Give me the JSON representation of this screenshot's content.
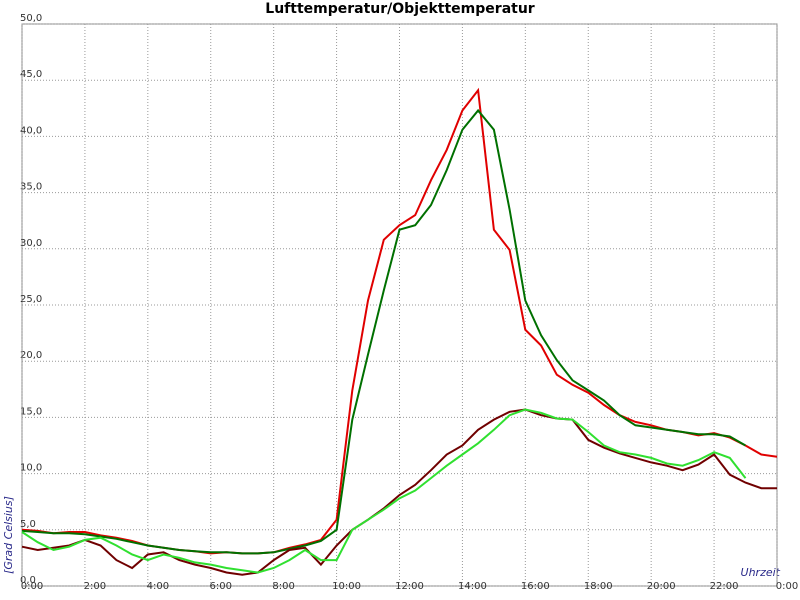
{
  "chart_data": {
    "type": "line",
    "title": "Lufttemperatur/Objekttemperatur",
    "y_label": "[Grad Celsius]",
    "x_label": "Uhrzeit",
    "grid": true,
    "x": [
      0,
      0.5,
      1,
      1.5,
      2,
      2.5,
      3,
      3.5,
      4,
      4.5,
      5,
      5.5,
      6,
      6.5,
      7,
      7.5,
      8,
      8.5,
      9,
      9.5,
      10,
      10.5,
      11,
      11.5,
      12,
      12.5,
      13,
      13.5,
      14,
      14.5,
      15,
      15.5,
      16,
      16.5,
      17,
      17.5,
      18,
      18.5,
      19,
      19.5,
      20,
      20.5,
      21,
      21.5,
      22,
      22.5,
      23,
      23.5,
      24
    ],
    "xlim": [
      0,
      24
    ],
    "xticks": [
      {
        "value": 0,
        "label": "0:00"
      },
      {
        "value": 2,
        "label": "2:00"
      },
      {
        "value": 4,
        "label": "4:00"
      },
      {
        "value": 6,
        "label": "6:00"
      },
      {
        "value": 8,
        "label": "8:00"
      },
      {
        "value": 10,
        "label": "10:00"
      },
      {
        "value": 12,
        "label": "12:00"
      },
      {
        "value": 14,
        "label": "14:00"
      },
      {
        "value": 16,
        "label": "16:00"
      },
      {
        "value": 18,
        "label": "18:00"
      },
      {
        "value": 20,
        "label": "20:00"
      },
      {
        "value": 22,
        "label": "22:00"
      },
      {
        "value": 24,
        "label": "0:00"
      }
    ],
    "ylim": [
      0,
      50
    ],
    "yticks": [
      {
        "value": 0,
        "label": "0,0"
      },
      {
        "value": 5,
        "label": "5,0"
      },
      {
        "value": 10,
        "label": "10,0"
      },
      {
        "value": 15,
        "label": "15,0"
      },
      {
        "value": 20,
        "label": "20,0"
      },
      {
        "value": 25,
        "label": "25,0"
      },
      {
        "value": 30,
        "label": "30,0"
      },
      {
        "value": 35,
        "label": "35,0"
      },
      {
        "value": 40,
        "label": "40,0"
      },
      {
        "value": 45,
        "label": "45,0"
      },
      {
        "value": 50,
        "label": "50,0"
      }
    ],
    "series": [
      {
        "color": "#e00000",
        "values": [
          5.0,
          4.9,
          4.7,
          4.8,
          4.8,
          4.5,
          4.3,
          4.0,
          3.6,
          3.4,
          3.2,
          3.1,
          2.9,
          3.0,
          2.9,
          2.9,
          3.0,
          3.4,
          3.7,
          4.1,
          5.9,
          17.4,
          25.4,
          30.8,
          32.1,
          33.0,
          36.1,
          38.8,
          42.3,
          44.1,
          31.7,
          29.9,
          22.8,
          21.4,
          18.8,
          17.9,
          17.2,
          16.1,
          15.2,
          14.6,
          14.3,
          13.9,
          13.7,
          13.4,
          13.6,
          13.2,
          12.5,
          11.7,
          11.5
        ]
      },
      {
        "color": "#007000",
        "values": [
          4.9,
          4.8,
          4.7,
          4.7,
          4.6,
          4.4,
          4.2,
          3.9,
          3.6,
          3.4,
          3.2,
          3.1,
          3.0,
          3.0,
          2.9,
          2.9,
          3.0,
          3.3,
          3.6,
          4.0,
          5.0,
          14.8,
          20.6,
          26.3,
          31.7,
          32.1,
          33.9,
          37.0,
          40.6,
          42.3,
          40.6,
          33.5,
          25.4,
          22.3,
          20.1,
          18.3,
          17.4,
          16.5,
          15.2,
          14.3,
          14.1,
          13.9,
          13.7,
          13.5,
          13.5,
          13.3,
          12.5,
          null,
          null
        ]
      },
      {
        "color": "#700000",
        "values": [
          3.5,
          3.2,
          3.4,
          3.6,
          4.1,
          3.6,
          2.3,
          1.6,
          2.8,
          3.0,
          2.3,
          1.9,
          1.6,
          1.2,
          1.0,
          1.2,
          2.3,
          3.2,
          3.4,
          1.9,
          3.6,
          5.0,
          5.9,
          6.9,
          8.1,
          9.0,
          10.3,
          11.7,
          12.5,
          13.9,
          14.8,
          15.5,
          15.7,
          15.2,
          14.9,
          14.8,
          13.0,
          12.3,
          11.8,
          11.4,
          11.0,
          10.7,
          10.3,
          10.8,
          11.7,
          9.9,
          9.2,
          8.7,
          8.7
        ]
      },
      {
        "color": "#30e030",
        "values": [
          4.8,
          3.9,
          3.2,
          3.5,
          4.1,
          4.3,
          3.6,
          2.8,
          2.3,
          2.8,
          2.5,
          2.1,
          1.9,
          1.6,
          1.4,
          1.2,
          1.6,
          2.3,
          3.2,
          2.3,
          2.3,
          5.0,
          5.9,
          6.8,
          7.8,
          8.5,
          9.6,
          10.7,
          11.7,
          12.7,
          13.9,
          15.2,
          15.7,
          15.4,
          14.9,
          14.8,
          13.7,
          12.5,
          11.9,
          11.7,
          11.4,
          10.9,
          10.7,
          11.2,
          11.9,
          11.4,
          9.6,
          null,
          null
        ]
      }
    ]
  }
}
